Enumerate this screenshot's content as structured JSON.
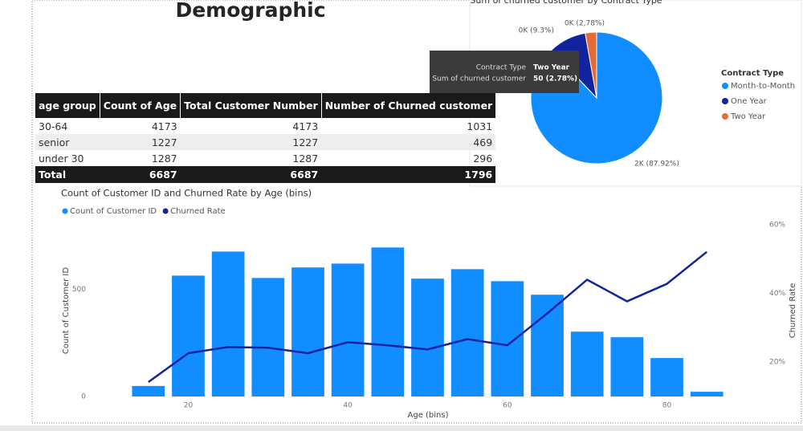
{
  "title": "Demographic",
  "table": {
    "header": [
      "age group",
      "Count of Age",
      "Total Customer Number",
      "Number of Churned customer"
    ],
    "rows": [
      [
        "30-64",
        4173,
        4173,
        1031
      ],
      [
        "senior",
        1227,
        1227,
        469
      ],
      [
        "under 30",
        1287,
        1287,
        296
      ]
    ],
    "total": [
      "Total",
      6687,
      6687,
      1796
    ]
  },
  "tooltip": {
    "rows": [
      [
        "Contract Type",
        "Two Year"
      ],
      [
        "Sum of churned customer",
        "50 (2.78%)"
      ]
    ]
  },
  "chart_data": [
    {
      "type": "pie",
      "title": "Sum of churned customer by Contract Type",
      "legend_title": "Contract Type",
      "categories": [
        "Month-to-Month",
        "One Year",
        "Two Year"
      ],
      "values": [
        87.92,
        9.3,
        2.78
      ],
      "value_labels": [
        "2K (87.92%)",
        "0K (9.3%)",
        "0K (2,78%)"
      ],
      "colors": [
        "#118DFF",
        "#12239E",
        "#E66C37"
      ]
    },
    {
      "type": "bar",
      "title": "Count of Customer ID and Churned Rate by Age (bins)",
      "x": [
        15,
        20,
        25,
        30,
        35,
        40,
        45,
        50,
        55,
        60,
        65,
        70,
        75,
        80,
        85
      ],
      "series": [
        {
          "name": "Count of Customer ID",
          "color": "#118DFF",
          "values": [
            49,
            563,
            675,
            552,
            601,
            619,
            694,
            549,
            593,
            537,
            474,
            302,
            276,
            179,
            22
          ]
        },
        {
          "name": "Churned Rate",
          "color": "#12239E",
          "type": "line",
          "axis": "y2",
          "values": [
            14.2,
            22.6,
            24.4,
            24.2,
            22.6,
            25.8,
            24.9,
            23.7,
            26.7,
            24.9,
            34.2,
            44.0,
            37.7,
            42.8,
            52.1
          ]
        }
      ],
      "xlabel": "Age (bins)",
      "ylabel": "Count of Customer ID",
      "y2label": "Churned Rate",
      "xlim": [
        12,
        88
      ],
      "xticks": [
        20,
        40,
        60,
        80
      ],
      "ylim": [
        0,
        800
      ],
      "yticks": [
        0,
        500
      ],
      "y2lim": [
        10,
        60
      ],
      "y2ticks": [
        {
          "value": 20,
          "label": "20%"
        },
        {
          "value": 40,
          "label": "40%"
        },
        {
          "value": 60,
          "label": "60%"
        }
      ],
      "grid": false
    }
  ]
}
